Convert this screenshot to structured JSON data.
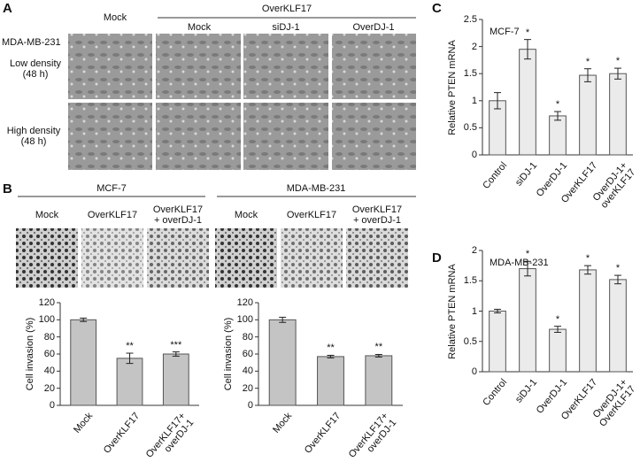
{
  "panel_labels": [
    "A",
    "B",
    "C",
    "D"
  ],
  "panel_a": {
    "group_header": "OverKLF17",
    "col_headers": [
      "Mock",
      "Mock",
      "siDJ-1",
      "OverDJ-1"
    ],
    "row_headers": [
      "MDA-MB-231",
      "Low density\n(48 h)",
      "High density\n(48 h)"
    ]
  },
  "panel_b": {
    "group_headers": [
      "MCF-7",
      "MDA-MB-231"
    ],
    "col_headers": [
      "Mock",
      "OverKLF17",
      "OverKLF17\n+ overDJ-1",
      "Mock",
      "OverKLF17",
      "OverKLF17\n+ overDJ-1"
    ]
  },
  "chart_data": [
    {
      "type": "bar",
      "y_label": "Cell invasion (%)",
      "categories": [
        "Mock",
        "OverKLF17",
        "OverKLF17+\noverDJ-1"
      ],
      "values": [
        100,
        55,
        60
      ],
      "errors": [
        2,
        6,
        2.5
      ],
      "stars": [
        null,
        "**",
        "***"
      ],
      "color": "#c4c4c4",
      "ylim": [
        0,
        120
      ],
      "yticks": [
        0,
        20,
        40,
        60,
        80,
        100,
        120
      ]
    },
    {
      "type": "bar",
      "y_label": "Cell invasion (%)",
      "categories": [
        "Mock",
        "OverKLF17",
        "OverKLF17+\noverDJ-1"
      ],
      "values": [
        100,
        57,
        58
      ],
      "errors": [
        3,
        1.5,
        1.5
      ],
      "stars": [
        null,
        "**",
        "**"
      ],
      "color": "#c4c4c4",
      "ylim": [
        0,
        120
      ],
      "yticks": [
        0,
        20,
        40,
        60,
        80,
        100,
        120
      ]
    },
    {
      "type": "bar",
      "title": "MCF-7",
      "y_label": "Relative PTEN mRNA",
      "categories": [
        "Control",
        "siDJ-1",
        "OverDJ-1",
        "OverKLF17",
        "OverDJ-1+\noverKLF17"
      ],
      "values": [
        1.0,
        1.95,
        0.72,
        1.47,
        1.5
      ],
      "errors": [
        0.15,
        0.18,
        0.08,
        0.12,
        0.1
      ],
      "stars": [
        null,
        "*",
        "*",
        "*",
        "*"
      ],
      "color": "#ebebeb",
      "ylim": [
        0,
        2.5
      ],
      "yticks": [
        0,
        0.5,
        1,
        1.5,
        2,
        2.5
      ]
    },
    {
      "type": "bar",
      "title": "MDA-MB-231",
      "y_label": "Relative PTEN mRNA",
      "categories": [
        "Control",
        "siDJ-1",
        "OverDJ-1",
        "OverKLF17",
        "OverDJ-1+\nOverKLF17"
      ],
      "values": [
        1.0,
        1.7,
        0.7,
        1.68,
        1.52
      ],
      "errors": [
        0.03,
        0.12,
        0.05,
        0.07,
        0.07
      ],
      "stars": [
        null,
        "*",
        "*",
        "*",
        "*"
      ],
      "color": "#ebebeb",
      "ylim": [
        0,
        2
      ],
      "yticks": [
        0,
        0.5,
        1,
        1.5,
        2
      ]
    }
  ]
}
